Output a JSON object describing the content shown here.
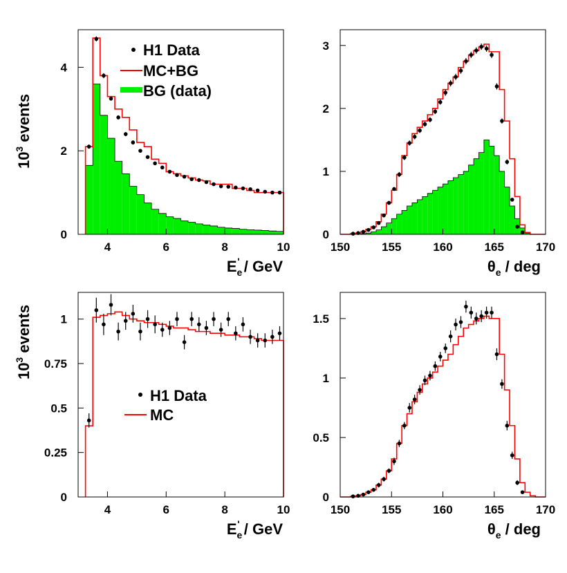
{
  "chart_data": [
    {
      "type": "histogram",
      "xlim": [
        3,
        10
      ],
      "ylim": [
        0,
        4.9
      ],
      "xticks": [
        4,
        6,
        8,
        10
      ],
      "yticks": [
        0,
        2,
        4
      ],
      "xtick_labels": [
        "4",
        "6",
        "8",
        "10"
      ],
      "ytick_labels": [
        "0",
        "2",
        "4"
      ],
      "ylabel": {
        "main": "10",
        "sup": "3",
        "rest": " events"
      },
      "xlabel": {
        "main": "E",
        "sub": "e",
        "sup": "'",
        "rest": " / GeV"
      },
      "legend": {
        "placement": "top-right",
        "entries": [
          "H1 Data",
          "MC+BG",
          "BG (data)"
        ]
      },
      "bin_edges": [
        3.25,
        3.5,
        3.75,
        4.0,
        4.25,
        4.5,
        4.75,
        5.0,
        5.25,
        5.5,
        5.75,
        6.0,
        6.25,
        6.5,
        6.75,
        7.0,
        7.25,
        7.5,
        7.75,
        8.0,
        8.25,
        8.5,
        8.75,
        9.0,
        9.25,
        9.5,
        9.75,
        10.0
      ],
      "series": [
        {
          "name": "MC+BG",
          "kind": "step",
          "color": "#ff0000",
          "values": [
            2.1,
            4.7,
            3.8,
            3.3,
            3.0,
            2.8,
            2.5,
            2.2,
            2.1,
            1.8,
            1.7,
            1.5,
            1.45,
            1.4,
            1.35,
            1.3,
            1.28,
            1.2,
            1.2,
            1.2,
            1.1,
            1.1,
            1.05,
            1.0,
            1.0,
            1.0,
            1.0
          ]
        },
        {
          "name": "BG (data)",
          "kind": "filled",
          "color": "#00ee00",
          "values": [
            1.65,
            3.6,
            2.85,
            2.3,
            1.75,
            1.45,
            1.15,
            0.95,
            0.75,
            0.6,
            0.5,
            0.42,
            0.38,
            0.32,
            0.29,
            0.25,
            0.22,
            0.2,
            0.17,
            0.15,
            0.14,
            0.12,
            0.11,
            0.1,
            0.09,
            0.08,
            0.07
          ]
        },
        {
          "name": "H1 Data",
          "kind": "points",
          "color": "#000000",
          "x": [
            3.37,
            3.62,
            3.87,
            4.12,
            4.37,
            4.62,
            4.87,
            5.12,
            5.37,
            5.62,
            5.87,
            6.12,
            6.37,
            6.62,
            6.87,
            7.12,
            7.37,
            7.62,
            7.87,
            8.12,
            8.37,
            8.62,
            8.87,
            9.12,
            9.37,
            9.62,
            9.87
          ],
          "y": [
            2.1,
            4.68,
            3.8,
            3.25,
            2.8,
            2.4,
            2.2,
            2.0,
            1.85,
            1.7,
            1.6,
            1.5,
            1.42,
            1.38,
            1.32,
            1.3,
            1.25,
            1.2,
            1.15,
            1.14,
            1.12,
            1.1,
            1.08,
            1.05,
            1.02,
            1.0,
            1.0
          ],
          "err": [
            0.05,
            0.06,
            0.06,
            0.05,
            0.05,
            0.05,
            0.05,
            0.04,
            0.04,
            0.04,
            0.04,
            0.04,
            0.04,
            0.04,
            0.04,
            0.04,
            0.04,
            0.03,
            0.03,
            0.03,
            0.03,
            0.03,
            0.03,
            0.03,
            0.03,
            0.03,
            0.03
          ]
        }
      ]
    },
    {
      "type": "histogram",
      "xlim": [
        150,
        170
      ],
      "ylim": [
        0,
        3.25
      ],
      "xticks": [
        150,
        155,
        160,
        165,
        170
      ],
      "yticks": [
        0,
        1,
        2,
        3
      ],
      "xtick_labels": [
        "150",
        "155",
        "160",
        "165",
        "170"
      ],
      "ytick_labels": [
        "0",
        "1",
        "2",
        "3"
      ],
      "xlabel": {
        "main": "θ",
        "sub": "e",
        "rest": " / deg"
      },
      "bin_edges": [
        150,
        150.5,
        151,
        151.5,
        152,
        152.5,
        153,
        153.5,
        154,
        154.5,
        155,
        155.5,
        156,
        156.5,
        157,
        157.5,
        158,
        158.5,
        159,
        159.5,
        160,
        160.5,
        161,
        161.5,
        162,
        162.5,
        163,
        163.5,
        164,
        164.5,
        165,
        165.5,
        166,
        166.5,
        167,
        167.5,
        168,
        168.5,
        169,
        169.5,
        170
      ],
      "series": [
        {
          "name": "MC+BG",
          "kind": "step",
          "color": "#ff0000",
          "values": [
            0,
            0,
            0.01,
            0.02,
            0.04,
            0.08,
            0.12,
            0.2,
            0.32,
            0.5,
            0.7,
            0.95,
            1.25,
            1.45,
            1.6,
            1.7,
            1.8,
            1.9,
            2.0,
            2.15,
            2.3,
            2.4,
            2.5,
            2.65,
            2.75,
            2.85,
            2.92,
            2.98,
            3.02,
            2.9,
            2.9,
            2.3,
            1.8,
            1.2,
            0.6,
            0.15,
            0.03,
            0,
            0,
            0
          ]
        },
        {
          "name": "BG (data)",
          "kind": "filled",
          "color": "#00ee00",
          "values": [
            0,
            0,
            0,
            0,
            0.01,
            0.02,
            0.04,
            0.07,
            0.12,
            0.18,
            0.25,
            0.32,
            0.38,
            0.45,
            0.5,
            0.55,
            0.6,
            0.65,
            0.7,
            0.75,
            0.8,
            0.85,
            0.9,
            0.95,
            1.0,
            1.1,
            1.2,
            1.3,
            1.5,
            1.4,
            1.25,
            1.0,
            0.75,
            0.45,
            0.25,
            0.1,
            0.02,
            0,
            0,
            0
          ]
        },
        {
          "name": "H1 Data",
          "kind": "points",
          "color": "#000000",
          "x": [
            151.25,
            151.75,
            152.25,
            152.75,
            153.25,
            153.75,
            154.25,
            154.75,
            155.25,
            155.75,
            156.25,
            156.75,
            157.25,
            157.75,
            158.25,
            158.75,
            159.25,
            159.75,
            160.25,
            160.75,
            161.25,
            161.75,
            162.25,
            162.75,
            163.25,
            163.75,
            164.25,
            164.75,
            165.25,
            165.75,
            166.25,
            166.75,
            167.25,
            167.75
          ],
          "y": [
            0.01,
            0.02,
            0.04,
            0.07,
            0.11,
            0.18,
            0.3,
            0.5,
            0.72,
            0.95,
            1.22,
            1.45,
            1.55,
            1.65,
            1.75,
            1.82,
            1.95,
            2.1,
            2.25,
            2.4,
            2.5,
            2.6,
            2.75,
            2.85,
            2.92,
            2.98,
            2.95,
            2.85,
            2.35,
            1.8,
            1.15,
            0.55,
            0.12,
            0.03
          ],
          "err": [
            0.01,
            0.01,
            0.01,
            0.02,
            0.02,
            0.02,
            0.03,
            0.03,
            0.03,
            0.04,
            0.04,
            0.04,
            0.04,
            0.04,
            0.04,
            0.04,
            0.04,
            0.04,
            0.05,
            0.05,
            0.05,
            0.05,
            0.05,
            0.05,
            0.05,
            0.05,
            0.05,
            0.05,
            0.05,
            0.04,
            0.04,
            0.03,
            0.02,
            0.01
          ]
        }
      ]
    },
    {
      "type": "histogram",
      "xlim": [
        3,
        10
      ],
      "ylim": [
        0,
        1.15
      ],
      "xticks": [
        4,
        6,
        8,
        10
      ],
      "yticks": [
        0,
        0.25,
        0.5,
        0.75,
        1
      ],
      "xtick_labels": [
        "4",
        "6",
        "8",
        "10"
      ],
      "ytick_labels": [
        "0",
        "0.25",
        "0.5",
        "0.75",
        "1"
      ],
      "ylabel": {
        "main": "10",
        "sup": "3",
        "rest": " events"
      },
      "xlabel": {
        "main": "E",
        "sub": "e",
        "sup": "'",
        "rest": " / GeV"
      },
      "legend": {
        "placement": "center",
        "entries": [
          "H1 Data",
          "MC"
        ]
      },
      "bin_edges": [
        3.25,
        3.5,
        3.75,
        4.0,
        4.25,
        4.5,
        4.75,
        5.0,
        5.25,
        5.5,
        5.75,
        6.0,
        6.25,
        6.5,
        6.75,
        7.0,
        7.25,
        7.5,
        7.75,
        8.0,
        8.25,
        8.5,
        8.75,
        9.0,
        9.25,
        9.5,
        9.75,
        10.0
      ],
      "series": [
        {
          "name": "MC",
          "kind": "step",
          "color": "#ff0000",
          "values": [
            0.4,
            1.01,
            1.02,
            1.03,
            1.04,
            1.02,
            1.0,
            0.99,
            0.98,
            0.98,
            0.97,
            0.96,
            0.95,
            0.95,
            0.94,
            0.93,
            0.93,
            0.92,
            0.92,
            0.91,
            0.91,
            0.9,
            0.9,
            0.89,
            0.88,
            0.88,
            0.88
          ]
        },
        {
          "name": "H1 Data",
          "kind": "points",
          "color": "#000000",
          "x": [
            3.37,
            3.62,
            3.87,
            4.12,
            4.37,
            4.62,
            4.87,
            5.12,
            5.37,
            5.62,
            5.87,
            6.12,
            6.37,
            6.62,
            6.87,
            7.12,
            7.37,
            7.62,
            7.87,
            8.12,
            8.37,
            8.62,
            8.87,
            9.12,
            9.37,
            9.62,
            9.87
          ],
          "y": [
            0.43,
            1.05,
            0.97,
            1.08,
            0.93,
            0.99,
            1.03,
            0.93,
            1.0,
            0.97,
            0.94,
            0.95,
            1.0,
            0.87,
            1.0,
            0.97,
            0.95,
            1.0,
            0.94,
            1.0,
            0.92,
            0.97,
            0.9,
            0.88,
            0.88,
            0.9,
            0.92
          ],
          "err": [
            0.04,
            0.07,
            0.06,
            0.06,
            0.05,
            0.05,
            0.05,
            0.05,
            0.05,
            0.05,
            0.04,
            0.04,
            0.04,
            0.04,
            0.04,
            0.04,
            0.04,
            0.04,
            0.04,
            0.04,
            0.04,
            0.04,
            0.04,
            0.04,
            0.04,
            0.04,
            0.04
          ]
        }
      ]
    },
    {
      "type": "histogram",
      "xlim": [
        150,
        170
      ],
      "ylim": [
        0,
        1.72
      ],
      "xticks": [
        150,
        155,
        160,
        165,
        170
      ],
      "yticks": [
        0,
        0.5,
        1,
        1.5
      ],
      "xtick_labels": [
        "150",
        "155",
        "160",
        "165",
        "170"
      ],
      "ytick_labels": [
        "0",
        "0.5",
        "1",
        "1.5"
      ],
      "xlabel": {
        "main": "θ",
        "sub": "e",
        "rest": " / deg"
      },
      "bin_edges": [
        150,
        150.5,
        151,
        151.5,
        152,
        152.5,
        153,
        153.5,
        154,
        154.5,
        155,
        155.5,
        156,
        156.5,
        157,
        157.5,
        158,
        158.5,
        159,
        159.5,
        160,
        160.5,
        161,
        161.5,
        162,
        162.5,
        163,
        163.5,
        164,
        164.5,
        165,
        165.5,
        166,
        166.5,
        167,
        167.5,
        168,
        168.5,
        169,
        169.5,
        170
      ],
      "series": [
        {
          "name": "MC",
          "kind": "step",
          "color": "#ff0000",
          "values": [
            0,
            0,
            0.005,
            0.01,
            0.02,
            0.04,
            0.06,
            0.1,
            0.15,
            0.22,
            0.32,
            0.45,
            0.6,
            0.7,
            0.8,
            0.88,
            0.95,
            1.0,
            1.05,
            1.1,
            1.15,
            1.2,
            1.28,
            1.35,
            1.42,
            1.45,
            1.48,
            1.5,
            1.52,
            1.5,
            1.5,
            1.2,
            0.9,
            0.6,
            0.32,
            0.12,
            0.04,
            0.01,
            0,
            0
          ]
        },
        {
          "name": "H1 Data",
          "kind": "points",
          "color": "#000000",
          "x": [
            151.25,
            151.75,
            152.25,
            152.75,
            153.25,
            153.75,
            154.25,
            154.75,
            155.25,
            155.75,
            156.25,
            156.75,
            157.25,
            157.75,
            158.25,
            158.75,
            159.25,
            159.75,
            160.25,
            160.75,
            161.25,
            161.75,
            162.25,
            162.75,
            163.25,
            163.75,
            164.25,
            164.75,
            165.25,
            165.75,
            166.25,
            166.75,
            167.25,
            167.75
          ],
          "y": [
            0.005,
            0.01,
            0.02,
            0.04,
            0.06,
            0.1,
            0.15,
            0.22,
            0.3,
            0.45,
            0.6,
            0.75,
            0.82,
            0.9,
            0.98,
            1.02,
            1.1,
            1.18,
            1.25,
            1.35,
            1.45,
            1.47,
            1.6,
            1.55,
            1.5,
            1.52,
            1.55,
            1.55,
            1.2,
            0.95,
            0.6,
            0.35,
            0.12,
            0.04
          ],
          "err": [
            0.005,
            0.005,
            0.01,
            0.01,
            0.01,
            0.02,
            0.02,
            0.02,
            0.03,
            0.03,
            0.03,
            0.04,
            0.04,
            0.04,
            0.04,
            0.04,
            0.04,
            0.04,
            0.04,
            0.05,
            0.05,
            0.05,
            0.05,
            0.05,
            0.05,
            0.05,
            0.05,
            0.05,
            0.05,
            0.04,
            0.04,
            0.03,
            0.02,
            0.01
          ]
        }
      ]
    }
  ]
}
